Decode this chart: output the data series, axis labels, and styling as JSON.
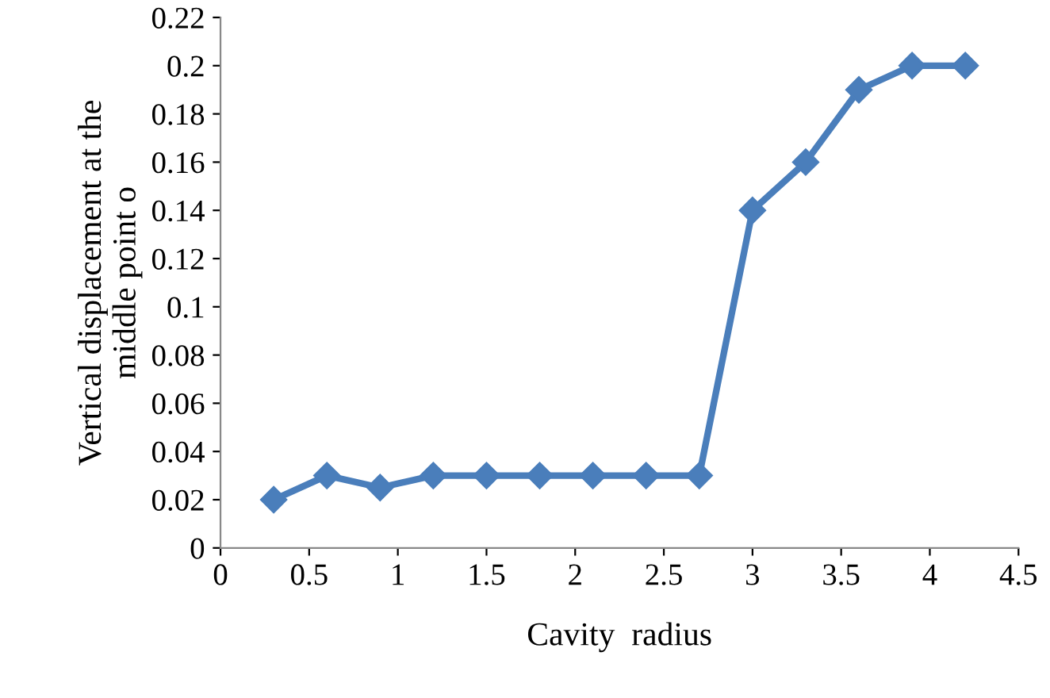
{
  "chart_data": {
    "type": "line",
    "xlabel": "Cavity  radius",
    "ylabel": "Vertical displacement at the\nmiddle point o",
    "x": [
      0.3,
      0.6,
      0.9,
      1.2,
      1.5,
      1.8,
      2.1,
      2.4,
      2.7,
      3,
      3.3,
      3.6,
      3.9,
      4.2
    ],
    "series": [
      {
        "color": "#4a7ebb",
        "values": [
          0.02,
          0.03,
          0.025,
          0.03,
          0.03,
          0.03,
          0.03,
          0.03,
          0.03,
          0.14,
          0.16,
          0.19,
          0.2,
          0.2
        ]
      }
    ],
    "xlim": [
      0,
      4.5
    ],
    "xticks": [
      0,
      0.5,
      1,
      1.5,
      2,
      2.5,
      3,
      3.5,
      4,
      4.5
    ],
    "ylim": [
      0,
      0.22
    ],
    "yticks": [
      0,
      0.02,
      0.04,
      0.06,
      0.08,
      0.1,
      0.12,
      0.14,
      0.16,
      0.18,
      0.2,
      0.22
    ],
    "marker": "diamond",
    "line_style": "solid",
    "grid": false,
    "legend": false
  }
}
